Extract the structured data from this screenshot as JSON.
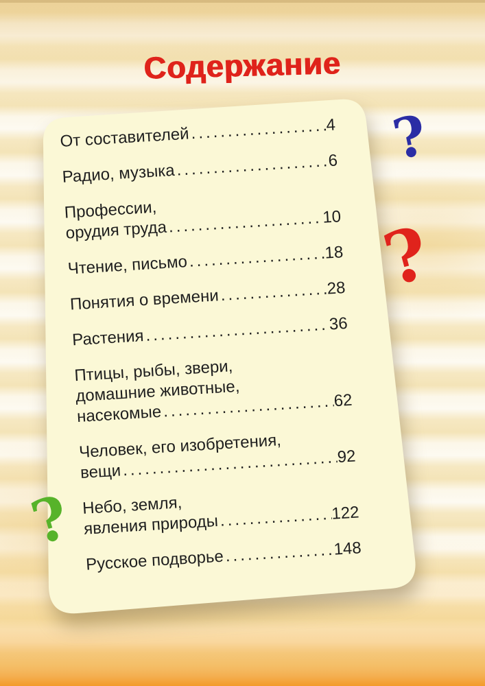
{
  "page": {
    "title": "Содержание",
    "colors": {
      "title_red": "#df231b",
      "panel_cream": "#fbf8d6",
      "text": "#1f1f1f",
      "stripe_orange": "#f29620",
      "qm_blue": "#2b2da5",
      "qm_red": "#e0231c",
      "qm_green": "#57b32a"
    },
    "toc": {
      "entries": [
        {
          "lines": [
            "От составителей"
          ],
          "page": "4"
        },
        {
          "lines": [
            "Радио, музыка"
          ],
          "page": "6"
        },
        {
          "lines": [
            "Профессии,",
            "орудия труда"
          ],
          "page": "10"
        },
        {
          "lines": [
            "Чтение, письмо"
          ],
          "page": "18"
        },
        {
          "lines": [
            "Понятия о времени"
          ],
          "page": "28"
        },
        {
          "lines": [
            "Растения"
          ],
          "page": "36"
        },
        {
          "lines": [
            "Птицы, рыбы, звери,",
            "домашние животные,",
            "насекомые"
          ],
          "page": "62"
        },
        {
          "lines": [
            "Человек, его изобретения,",
            "вещи"
          ],
          "page": "92"
        },
        {
          "lines": [
            "Небо, земля,",
            "явления природы"
          ],
          "page": "122"
        },
        {
          "lines": [
            "Русское подворье"
          ],
          "page": "148"
        }
      ]
    },
    "decorations": {
      "question_marks": [
        {
          "name": "blue",
          "glyph": "?",
          "color": "#2b2da5"
        },
        {
          "name": "red",
          "glyph": "?",
          "color": "#e0231c"
        },
        {
          "name": "green",
          "glyph": "?",
          "color": "#57b32a"
        }
      ]
    }
  }
}
